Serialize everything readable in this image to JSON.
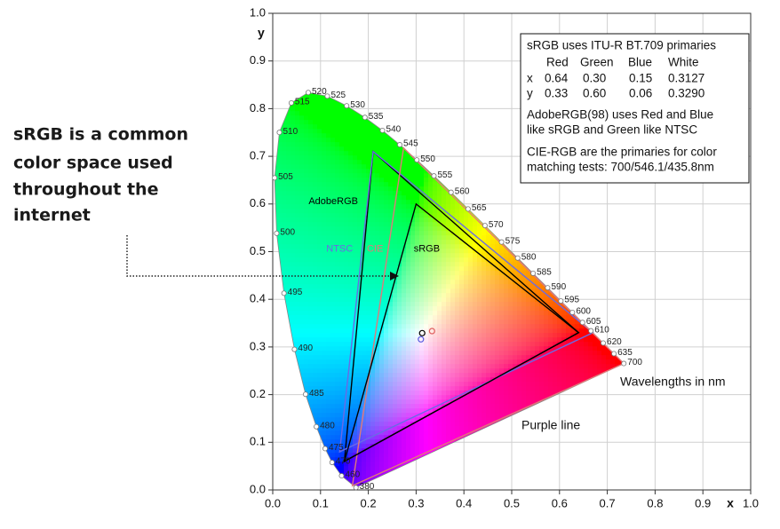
{
  "annotation": {
    "lines": [
      "sRGB is a common",
      "color space used",
      "throughout the",
      "internet"
    ]
  },
  "chart_data": {
    "type": "chromaticity",
    "x_label": "x",
    "y_label": "y",
    "xlim": [
      0,
      1
    ],
    "ylim": [
      0,
      1
    ],
    "xticks": [
      {
        "value": 0,
        "label": "0.0"
      },
      0.1,
      0.2,
      0.3,
      0.4,
      0.5,
      0.6,
      0.7,
      0.8,
      0.9,
      {
        "value": 1,
        "label": "1.0"
      }
    ],
    "yticks": [
      {
        "value": 0,
        "label": "0.0"
      },
      0.1,
      0.2,
      0.3,
      0.4,
      0.5,
      0.6,
      0.7,
      0.8,
      0.9,
      {
        "value": 1,
        "label": "1.0"
      }
    ],
    "grid": true,
    "spectral_locus": {
      "wavelengths": [
        380,
        460,
        470,
        475,
        480,
        485,
        490,
        495,
        500,
        505,
        510,
        515,
        520,
        525,
        530,
        535,
        540,
        545,
        550,
        555,
        560,
        565,
        570,
        575,
        580,
        585,
        590,
        595,
        600,
        605,
        610,
        620,
        635,
        700
      ],
      "x": [
        0.1741,
        0.144,
        0.1241,
        0.1096,
        0.0913,
        0.0687,
        0.0454,
        0.0235,
        0.0082,
        0.0039,
        0.0139,
        0.0389,
        0.0743,
        0.1142,
        0.1547,
        0.1929,
        0.2296,
        0.2658,
        0.3016,
        0.3373,
        0.3731,
        0.4087,
        0.4441,
        0.4788,
        0.5125,
        0.5448,
        0.5752,
        0.6029,
        0.627,
        0.6482,
        0.6658,
        0.6915,
        0.714,
        0.7347
      ],
      "y": [
        0.005,
        0.0297,
        0.0578,
        0.0868,
        0.1327,
        0.2007,
        0.295,
        0.4127,
        0.5384,
        0.6548,
        0.7502,
        0.812,
        0.8338,
        0.8262,
        0.8059,
        0.7816,
        0.7543,
        0.7243,
        0.6923,
        0.6589,
        0.6245,
        0.5896,
        0.5547,
        0.5202,
        0.4866,
        0.4544,
        0.4242,
        0.3965,
        0.3725,
        0.3514,
        0.334,
        0.3083,
        0.2859,
        0.2653
      ]
    },
    "locus_label": "Wavelengths in nm",
    "purple_line_label": "Purple line",
    "gamuts": [
      {
        "name": "AdobeRGB",
        "color": "#000000",
        "x": [
          0.64,
          0.21,
          0.15
        ],
        "y": [
          0.33,
          0.71,
          0.06
        ]
      },
      {
        "name": "NTSC",
        "color": "#6a6ae6",
        "x": [
          0.67,
          0.21,
          0.14
        ],
        "y": [
          0.33,
          0.71,
          0.08
        ]
      },
      {
        "name": "CIE",
        "color": "#e07a7a",
        "x": [
          0.7347,
          0.2738,
          0.1666
        ],
        "y": [
          0.2653,
          0.7174,
          0.0089
        ]
      },
      {
        "name": "sRGB",
        "color": "#000000",
        "x": [
          0.64,
          0.3,
          0.15
        ],
        "y": [
          0.33,
          0.6,
          0.06
        ]
      }
    ],
    "white_points": [
      {
        "x": 0.3127,
        "y": 0.329,
        "color": "#000000"
      },
      {
        "x": 0.31,
        "y": 0.316,
        "color": "#5a5ae0"
      },
      {
        "x": 0.3333,
        "y": 0.3333,
        "color": "#e06060"
      }
    ],
    "info_box": {
      "title": "sRGB uses ITU-R BT.709 primaries",
      "header": [
        "Red",
        "Green",
        "Blue",
        "White"
      ],
      "rows": [
        [
          "x",
          "0.64",
          "0.30",
          "0.15",
          "0.3127"
        ],
        [
          "y",
          "0.33",
          "0.60",
          "0.06",
          "0.3290"
        ]
      ],
      "notes": [
        [
          "AdobeRGB(98) uses Red and Blue",
          "like sRGB and Green like NTSC"
        ],
        [
          "CIE-RGB are the primaries for color",
          "matching tests: 700/546.1/435.8nm"
        ]
      ]
    }
  }
}
